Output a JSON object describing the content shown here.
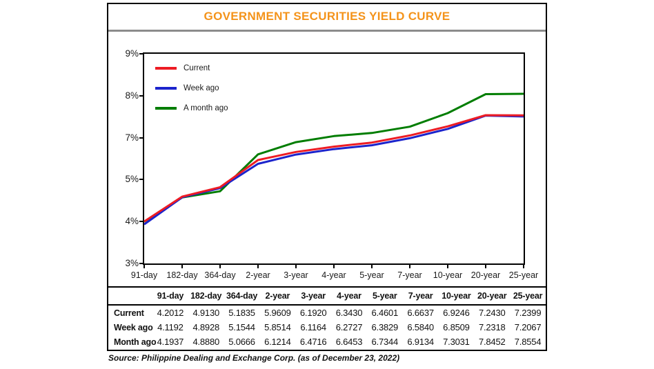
{
  "title": "GOVERNMENT SECURITIES YIELD CURVE",
  "source_note": "Source: Philippine Dealing and Exchange Corp. (as of December 23, 2022)",
  "colors": {
    "title_orange": "#F4931A",
    "divider_gray": "#8C8C8C",
    "axis_black": "#000000",
    "current_red": "#ED1C24",
    "week_ago_blue": "#1C24CC",
    "month_ago_green": "#007D00"
  },
  "chart_data": {
    "type": "line",
    "title": "GOVERNMENT SECURITIES YIELD CURVE",
    "categories": [
      "91-day",
      "182-day",
      "364-day",
      "2-year",
      "3-year",
      "4-year",
      "5-year",
      "7-year",
      "10-year",
      "20-year",
      "25-year"
    ],
    "y_axis": {
      "unit": "%",
      "min": 3,
      "max": 9,
      "tick_labels_top_to_bottom": [
        "9%",
        "8%",
        "7%",
        "5%",
        "4%",
        "3%"
      ]
    },
    "grid": false,
    "legend_position": "top-left",
    "legend": [
      {
        "label": "Current",
        "color": "#ED1C24"
      },
      {
        "label": "Week ago",
        "color": "#1C24CC"
      },
      {
        "label": "A month ago",
        "color": "#007D00"
      }
    ],
    "series": [
      {
        "name": "Current",
        "color": "#ED1C24",
        "values": [
          4.2012,
          4.913,
          5.1835,
          5.9609,
          6.192,
          6.343,
          6.4601,
          6.6637,
          6.9246,
          7.243,
          7.2399
        ]
      },
      {
        "name": "Week ago",
        "color": "#1C24CC",
        "values": [
          4.1192,
          4.8928,
          5.1544,
          5.8514,
          6.1164,
          6.2727,
          6.3829,
          6.584,
          6.8509,
          7.2318,
          7.2067
        ]
      },
      {
        "name": "A month ago",
        "color": "#007D00",
        "values": [
          4.1937,
          4.888,
          5.0666,
          6.1214,
          6.4716,
          6.6453,
          6.7344,
          6.9134,
          7.3031,
          7.8452,
          7.8554
        ]
      }
    ]
  },
  "table": {
    "column_headers": [
      "",
      "91-day",
      "182-day",
      "364-day",
      "2-year",
      "3-year",
      "4-year",
      "5-year",
      "7-year",
      "10-year",
      "20-year",
      "25-year"
    ],
    "rows": [
      {
        "label": "Current",
        "values": [
          "4.2012",
          "4.9130",
          "5.1835",
          "5.9609",
          "6.1920",
          "6.3430",
          "6.4601",
          "6.6637",
          "6.9246",
          "7.2430",
          "7.2399"
        ]
      },
      {
        "label": "Week ago",
        "values": [
          "4.1192",
          "4.8928",
          "5.1544",
          "5.8514",
          "6.1164",
          "6.2727",
          "6.3829",
          "6.5840",
          "6.8509",
          "7.2318",
          "7.2067"
        ]
      },
      {
        "label": "Month ago",
        "values": [
          "4.1937",
          "4.8880",
          "5.0666",
          "6.1214",
          "6.4716",
          "6.6453",
          "6.7344",
          "6.9134",
          "7.3031",
          "7.8452",
          "7.8554"
        ]
      }
    ]
  }
}
